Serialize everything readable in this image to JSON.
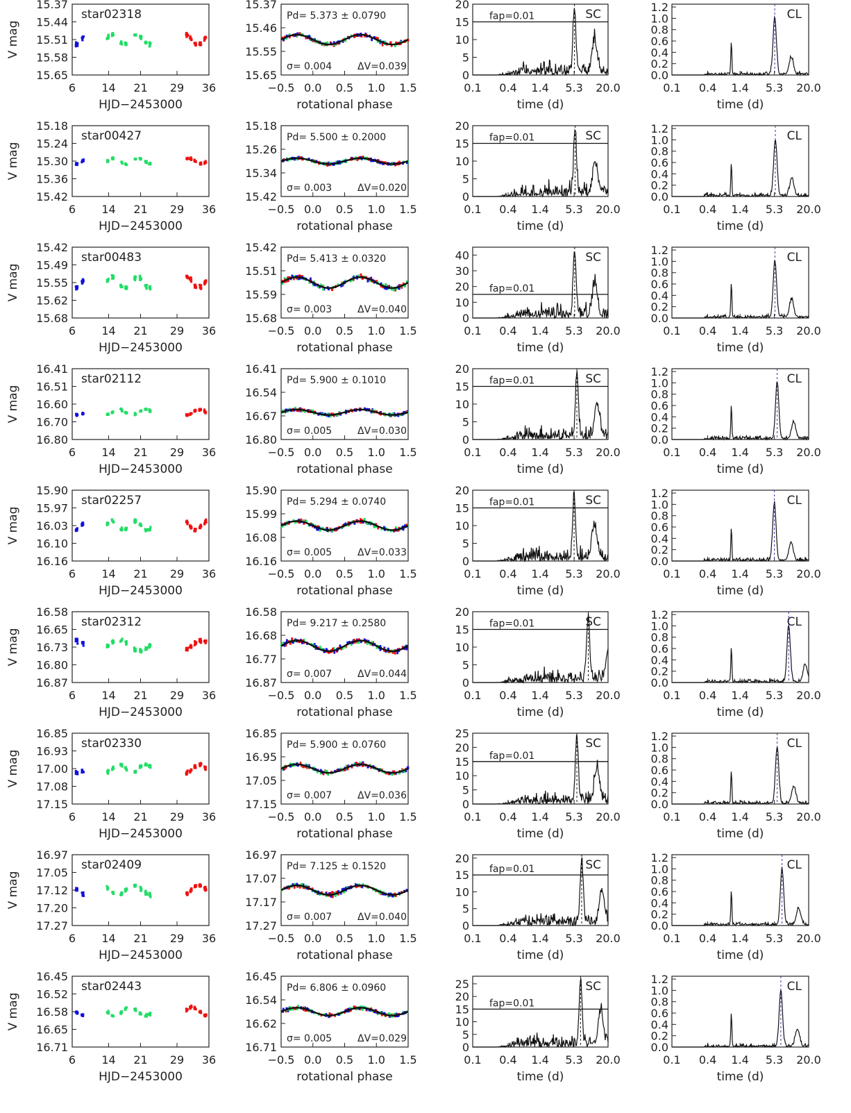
{
  "figure": {
    "column_axes": {
      "lightcurve": {
        "xlabel": "HJD−2453000",
        "ylabel": "V mag",
        "xticks": [
          "6",
          "14",
          "21",
          "29",
          "36"
        ]
      },
      "phase": {
        "xlabel": "rotational phase",
        "xticks": [
          "−0.5",
          "0.0",
          "0.5",
          "1.0",
          "1.5"
        ]
      },
      "scargle": {
        "xlabel": "time (d)",
        "xticks": [
          "0.1",
          "0.4",
          "1.4",
          "5.3",
          "20.0"
        ],
        "tag": "SC",
        "fap_label": "fap=0.01"
      },
      "clean": {
        "xlabel": "time (d)",
        "xticks": [
          "0.1",
          "0.4",
          "1.4",
          "5.3",
          "20.0"
        ],
        "tag": "CL",
        "yticks": [
          "0.0",
          "0.2",
          "0.4",
          "0.6",
          "0.8",
          "1.0",
          "1.2"
        ]
      }
    },
    "colors": {
      "seg1": "#1010dd",
      "seg2": "#22dd66",
      "seg3": "#ee1111",
      "ink": "#111111"
    }
  },
  "chart_data": [
    {
      "type": "scatter",
      "star": "star02318",
      "mag_ticks": [
        "15.37",
        "15.44",
        "15.51",
        "15.58",
        "15.65"
      ],
      "mag_range": [
        15.37,
        15.65
      ],
      "phase_ticks": [
        "15.37",
        "15.46",
        "15.55",
        "15.65"
      ],
      "period_text": "Pd= 5.373 ± 0.0790",
      "sigma_text": "σ= 0.004",
      "dv_text": "ΔV=0.039",
      "period": 5.373,
      "mean_mag": 15.51,
      "amplitude": 0.039,
      "sc_ticks": [
        "20",
        "15",
        "10",
        "5",
        "0"
      ],
      "sc_max": 20
    },
    {
      "type": "scatter",
      "star": "star00427",
      "mag_ticks": [
        "15.18",
        "15.24",
        "15.30",
        "15.36",
        "15.42"
      ],
      "mag_range": [
        15.18,
        15.42
      ],
      "phase_ticks": [
        "15.18",
        "15.26",
        "15.34",
        "15.42"
      ],
      "period_text": "Pd= 5.500 ± 0.2000",
      "sigma_text": "σ= 0.003",
      "dv_text": "ΔV=0.020",
      "period": 5.5,
      "mean_mag": 15.3,
      "amplitude": 0.02,
      "sc_ticks": [
        "20",
        "15",
        "10",
        "5",
        "0"
      ],
      "sc_max": 20
    },
    {
      "type": "scatter",
      "star": "star00483",
      "mag_ticks": [
        "15.42",
        "15.49",
        "15.55",
        "15.62",
        "15.68"
      ],
      "mag_range": [
        15.42,
        15.68
      ],
      "phase_ticks": [
        "15.42",
        "15.51",
        "15.59",
        "15.68"
      ],
      "period_text": "Pd= 5.413 ± 0.0320",
      "sigma_text": "σ= 0.003",
      "dv_text": "ΔV=0.040",
      "period": 5.413,
      "mean_mag": 15.55,
      "amplitude": 0.04,
      "sc_ticks": [
        "40",
        "30",
        "20",
        "10",
        "0"
      ],
      "sc_max": 45
    },
    {
      "type": "scatter",
      "star": "star02112",
      "mag_ticks": [
        "16.41",
        "16.51",
        "16.60",
        "16.70",
        "16.80"
      ],
      "mag_range": [
        16.41,
        16.8
      ],
      "phase_ticks": [
        "16.41",
        "16.54",
        "16.67",
        "16.80"
      ],
      "period_text": "Pd= 5.900 ± 0.1010",
      "sigma_text": "σ= 0.005",
      "dv_text": "ΔV=0.030",
      "period": 5.9,
      "mean_mag": 16.65,
      "amplitude": 0.03,
      "sc_ticks": [
        "20",
        "15",
        "10",
        "5",
        "0"
      ],
      "sc_max": 20
    },
    {
      "type": "scatter",
      "star": "star02257",
      "mag_ticks": [
        "15.90",
        "15.97",
        "16.03",
        "16.10",
        "16.16"
      ],
      "mag_range": [
        15.9,
        16.16
      ],
      "phase_ticks": [
        "15.90",
        "15.99",
        "16.08",
        "16.16"
      ],
      "period_text": "Pd= 5.294 ± 0.0740",
      "sigma_text": "σ= 0.005",
      "dv_text": "ΔV=0.033",
      "period": 5.294,
      "mean_mag": 16.03,
      "amplitude": 0.033,
      "sc_ticks": [
        "20",
        "15",
        "10",
        "5",
        "0"
      ],
      "sc_max": 20
    },
    {
      "type": "scatter",
      "star": "star02312",
      "mag_ticks": [
        "16.58",
        "16.65",
        "16.73",
        "16.80",
        "16.87"
      ],
      "mag_range": [
        16.58,
        16.87
      ],
      "phase_ticks": [
        "16.58",
        "16.68",
        "16.77",
        "16.87"
      ],
      "period_text": "Pd= 9.217 ± 0.2580",
      "sigma_text": "σ= 0.007",
      "dv_text": "ΔV=0.044",
      "period": 9.217,
      "mean_mag": 16.72,
      "amplitude": 0.044,
      "sc_ticks": [
        "20",
        "15",
        "10",
        "5",
        "0"
      ],
      "sc_max": 20
    },
    {
      "type": "scatter",
      "star": "star02330",
      "mag_ticks": [
        "16.85",
        "16.93",
        "17.00",
        "17.08",
        "17.15"
      ],
      "mag_range": [
        16.85,
        17.15
      ],
      "phase_ticks": [
        "16.85",
        "16.95",
        "17.05",
        "17.15"
      ],
      "period_text": "Pd= 5.900 ± 0.0760",
      "sigma_text": "σ= 0.007",
      "dv_text": "ΔV=0.036",
      "period": 5.9,
      "mean_mag": 17.0,
      "amplitude": 0.036,
      "sc_ticks": [
        "25",
        "20",
        "15",
        "10",
        "5",
        "0"
      ],
      "sc_max": 25
    },
    {
      "type": "scatter",
      "star": "star02409",
      "mag_ticks": [
        "16.97",
        "17.05",
        "17.12",
        "17.20",
        "17.27"
      ],
      "mag_range": [
        16.97,
        17.27
      ],
      "phase_ticks": [
        "16.97",
        "17.07",
        "17.17",
        "17.27"
      ],
      "period_text": "Pd= 7.125 ± 0.1520",
      "sigma_text": "σ= 0.007",
      "dv_text": "ΔV=0.040",
      "period": 7.125,
      "mean_mag": 17.12,
      "amplitude": 0.04,
      "sc_ticks": [
        "20",
        "15",
        "10",
        "5",
        "0"
      ],
      "sc_max": 21
    },
    {
      "type": "scatter",
      "star": "star02443",
      "mag_ticks": [
        "16.45",
        "16.52",
        "16.58",
        "16.65",
        "16.71"
      ],
      "mag_range": [
        16.45,
        16.71
      ],
      "phase_ticks": [
        "16.45",
        "16.54",
        "16.62",
        "16.71"
      ],
      "period_text": "Pd= 6.806 ± 0.0960",
      "sigma_text": "σ= 0.005",
      "dv_text": "ΔV=0.029",
      "period": 6.806,
      "mean_mag": 16.58,
      "amplitude": 0.029,
      "sc_ticks": [
        "25",
        "20",
        "15",
        "10",
        "5",
        "0"
      ],
      "sc_max": 28
    }
  ]
}
